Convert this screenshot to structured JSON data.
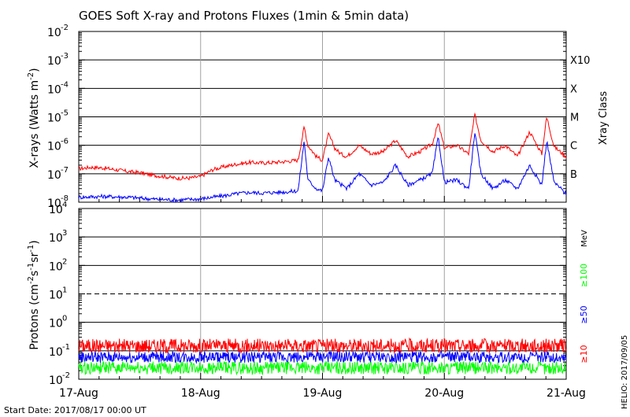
{
  "title": "GOES Soft X-ray and Protons Fluxes   (1min & 5min data)",
  "footer": {
    "start_date": "Start Date: 2017/08/17 00:00 UT",
    "helio": "HELIO: 2017/09/05"
  },
  "colors": {
    "red": "#ff0000",
    "blue": "#0000ff",
    "green": "#00ff00",
    "grid": "#000000",
    "vgrid": "#a0a0a0"
  },
  "chart_data": [
    {
      "type": "line",
      "panel": "xray",
      "title": "GOES Soft X-ray and Protons Fluxes   (1min & 5min data)",
      "ylabel": "X-rays (Watts m⁻²)",
      "ylabel_main": "X-rays (Watts m",
      "ylabel_sup": "-2",
      "ylabel_close": ")",
      "yscale": "log",
      "ylim_exp": [
        -8,
        -2
      ],
      "ytick_exponents": [
        "-2",
        "-3",
        "-4",
        "-5",
        "-6",
        "-7",
        "-8"
      ],
      "xlim": [
        "2017-08-17",
        "2017-08-21"
      ],
      "x_tick_labels": [
        "17-Aug",
        "18-Aug",
        "19-Aug",
        "20-Aug",
        "21-Aug"
      ],
      "right_axis_label": "Xray Class",
      "class_labels": [
        {
          "label": "X10",
          "exp": -3
        },
        {
          "label": "X",
          "exp": -4
        },
        {
          "label": "M",
          "exp": -5
        },
        {
          "label": "C",
          "exp": -6
        },
        {
          "label": "B",
          "exp": -7
        }
      ],
      "series": [
        {
          "color": "red",
          "x_days": [
            0,
            0.1,
            0.2,
            0.3,
            0.4,
            0.5,
            0.6,
            0.7,
            0.8,
            0.9,
            1.0,
            1.1,
            1.2,
            1.3,
            1.4,
            1.5,
            1.6,
            1.7,
            1.8,
            1.85,
            1.88,
            1.95,
            2.0,
            2.05,
            2.1,
            2.15,
            2.2,
            2.3,
            2.4,
            2.5,
            2.6,
            2.7,
            2.8,
            2.9,
            2.95,
            3.0,
            3.1,
            3.2,
            3.25,
            3.3,
            3.4,
            3.5,
            3.6,
            3.7,
            3.8,
            3.84,
            3.9,
            4.0
          ],
          "values": [
            1.5e-07,
            1.7e-07,
            1.6e-07,
            1.4e-07,
            1.2e-07,
            1.1e-07,
            9e-08,
            8e-08,
            7e-08,
            7e-08,
            8e-08,
            1.4e-07,
            1.8e-07,
            2.2e-07,
            2.5e-07,
            2.4e-07,
            2.5e-07,
            2.7e-07,
            3e-07,
            4.5e-06,
            1e-06,
            4e-07,
            3e-07,
            2.5e-06,
            8e-07,
            5e-07,
            4e-07,
            1e-06,
            5e-07,
            6e-07,
            1.5e-06,
            4e-07,
            6e-07,
            1.1e-06,
            6e-06,
            8e-07,
            1e-06,
            5e-07,
            1.2e-05,
            1.5e-06,
            6e-07,
            1e-06,
            4e-07,
            3e-06,
            5e-07,
            1e-05,
            9e-07,
            4e-07
          ]
        },
        {
          "color": "blue",
          "x_days": [
            0,
            0.2,
            0.4,
            0.6,
            0.8,
            1.0,
            1.1,
            1.2,
            1.3,
            1.4,
            1.5,
            1.6,
            1.7,
            1.8,
            1.85,
            1.88,
            1.95,
            2.0,
            2.05,
            2.1,
            2.2,
            2.3,
            2.4,
            2.5,
            2.6,
            2.7,
            2.8,
            2.9,
            2.95,
            3.0,
            3.1,
            3.2,
            3.25,
            3.3,
            3.4,
            3.5,
            3.6,
            3.7,
            3.8,
            3.84,
            3.9,
            4.0
          ],
          "values": [
            1.5e-08,
            1.6e-08,
            1.5e-08,
            1.3e-08,
            1.2e-08,
            1.3e-08,
            1.5e-08,
            1.7e-08,
            2e-08,
            2.2e-08,
            2.1e-08,
            2.2e-08,
            2.3e-08,
            2.5e-08,
            1.5e-06,
            6e-08,
            3e-08,
            2.5e-08,
            4e-07,
            6e-08,
            3e-08,
            1e-07,
            4e-08,
            5e-08,
            2e-07,
            4e-08,
            6e-08,
            1e-07,
            2e-06,
            5e-08,
            6e-08,
            3e-08,
            3e-06,
            1e-07,
            3e-08,
            6e-08,
            3e-08,
            2e-07,
            4e-08,
            1.5e-06,
            5e-08,
            2e-08
          ]
        }
      ]
    },
    {
      "type": "line",
      "panel": "protons",
      "ylabel": "Protons (cm⁻²s⁻¹sr⁻¹)",
      "ylabel_parts": [
        "Protons (cm",
        "-2",
        "s",
        "-1",
        "sr",
        "-1",
        ")"
      ],
      "yscale": "log",
      "ylim_exp": [
        -2,
        4
      ],
      "ytick_exponents": [
        "4",
        "3",
        "2",
        "1",
        "0",
        "-1",
        "-2"
      ],
      "xlim": [
        "2017-08-17",
        "2017-08-21"
      ],
      "x_tick_labels": [
        "17-Aug",
        "18-Aug",
        "19-Aug",
        "20-Aug",
        "21-Aug"
      ],
      "dashed_line_value": 10,
      "right_labels": {
        "unit": "MeV",
        "p100": "≥100",
        "p50": "≥50",
        "p10": "≥10"
      },
      "series": [
        {
          "name": "≥10",
          "color": "red",
          "level": 0.15,
          "spread": 0.5
        },
        {
          "name": "≥50",
          "color": "blue",
          "level": 0.06,
          "spread": 0.4
        },
        {
          "name": "≥100",
          "color": "green",
          "level": 0.025,
          "spread": 0.45
        }
      ]
    }
  ]
}
